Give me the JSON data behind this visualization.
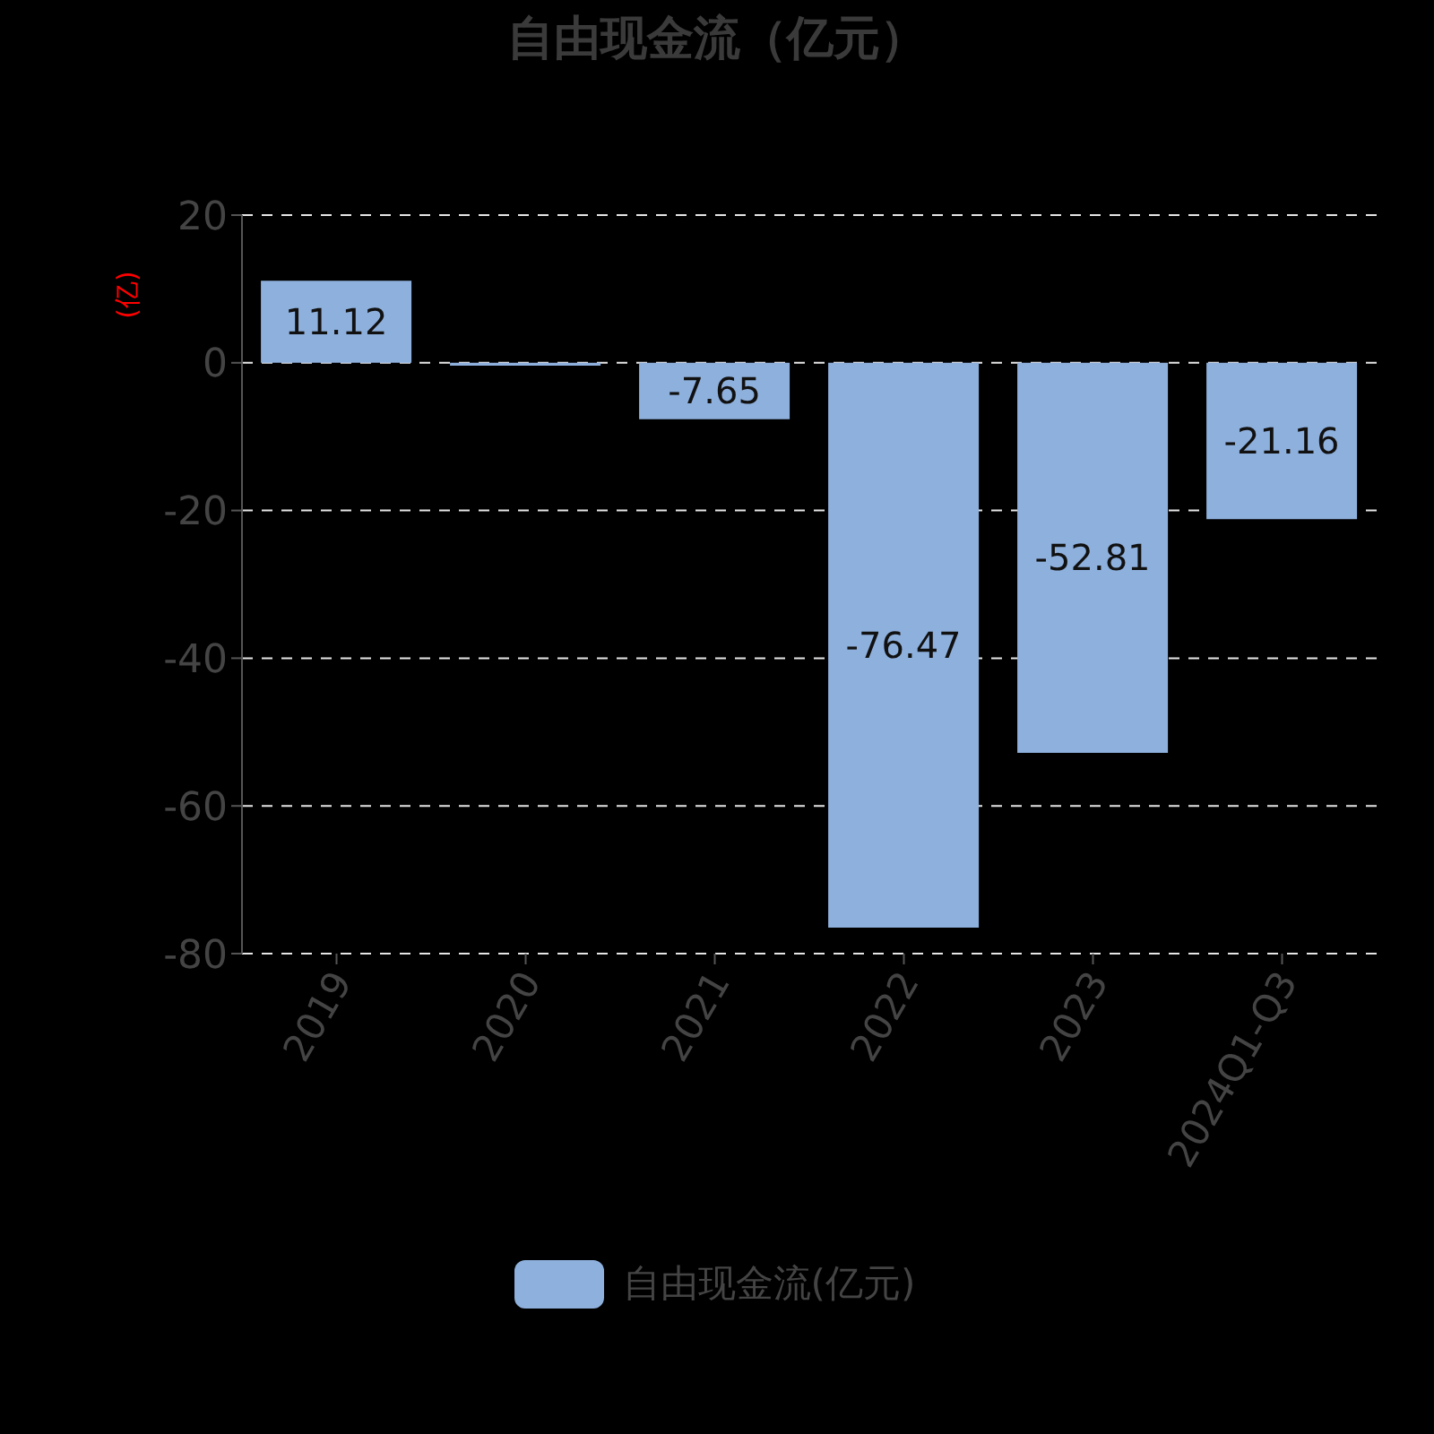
{
  "chart_data": {
    "type": "bar",
    "title": "自由现金流（亿元）",
    "ylabel": "(亿)",
    "categories": [
      "2019",
      "2020",
      "2021",
      "2022",
      "2023",
      "2024Q1-Q3"
    ],
    "series": [
      {
        "name": "自由现金流(亿元)",
        "color": "#8eb0dd",
        "values": [
          11.12,
          -0.4,
          -7.65,
          -76.47,
          -52.81,
          -21.16
        ],
        "value_labels": [
          "11.12",
          null,
          "-7.65",
          "-76.47",
          "-52.81",
          "-21.16"
        ]
      }
    ],
    "ylim": [
      -80,
      20
    ],
    "yticks": [
      -80,
      -60,
      -40,
      -20,
      0,
      20
    ],
    "grid": "y",
    "legend": "bottom"
  }
}
